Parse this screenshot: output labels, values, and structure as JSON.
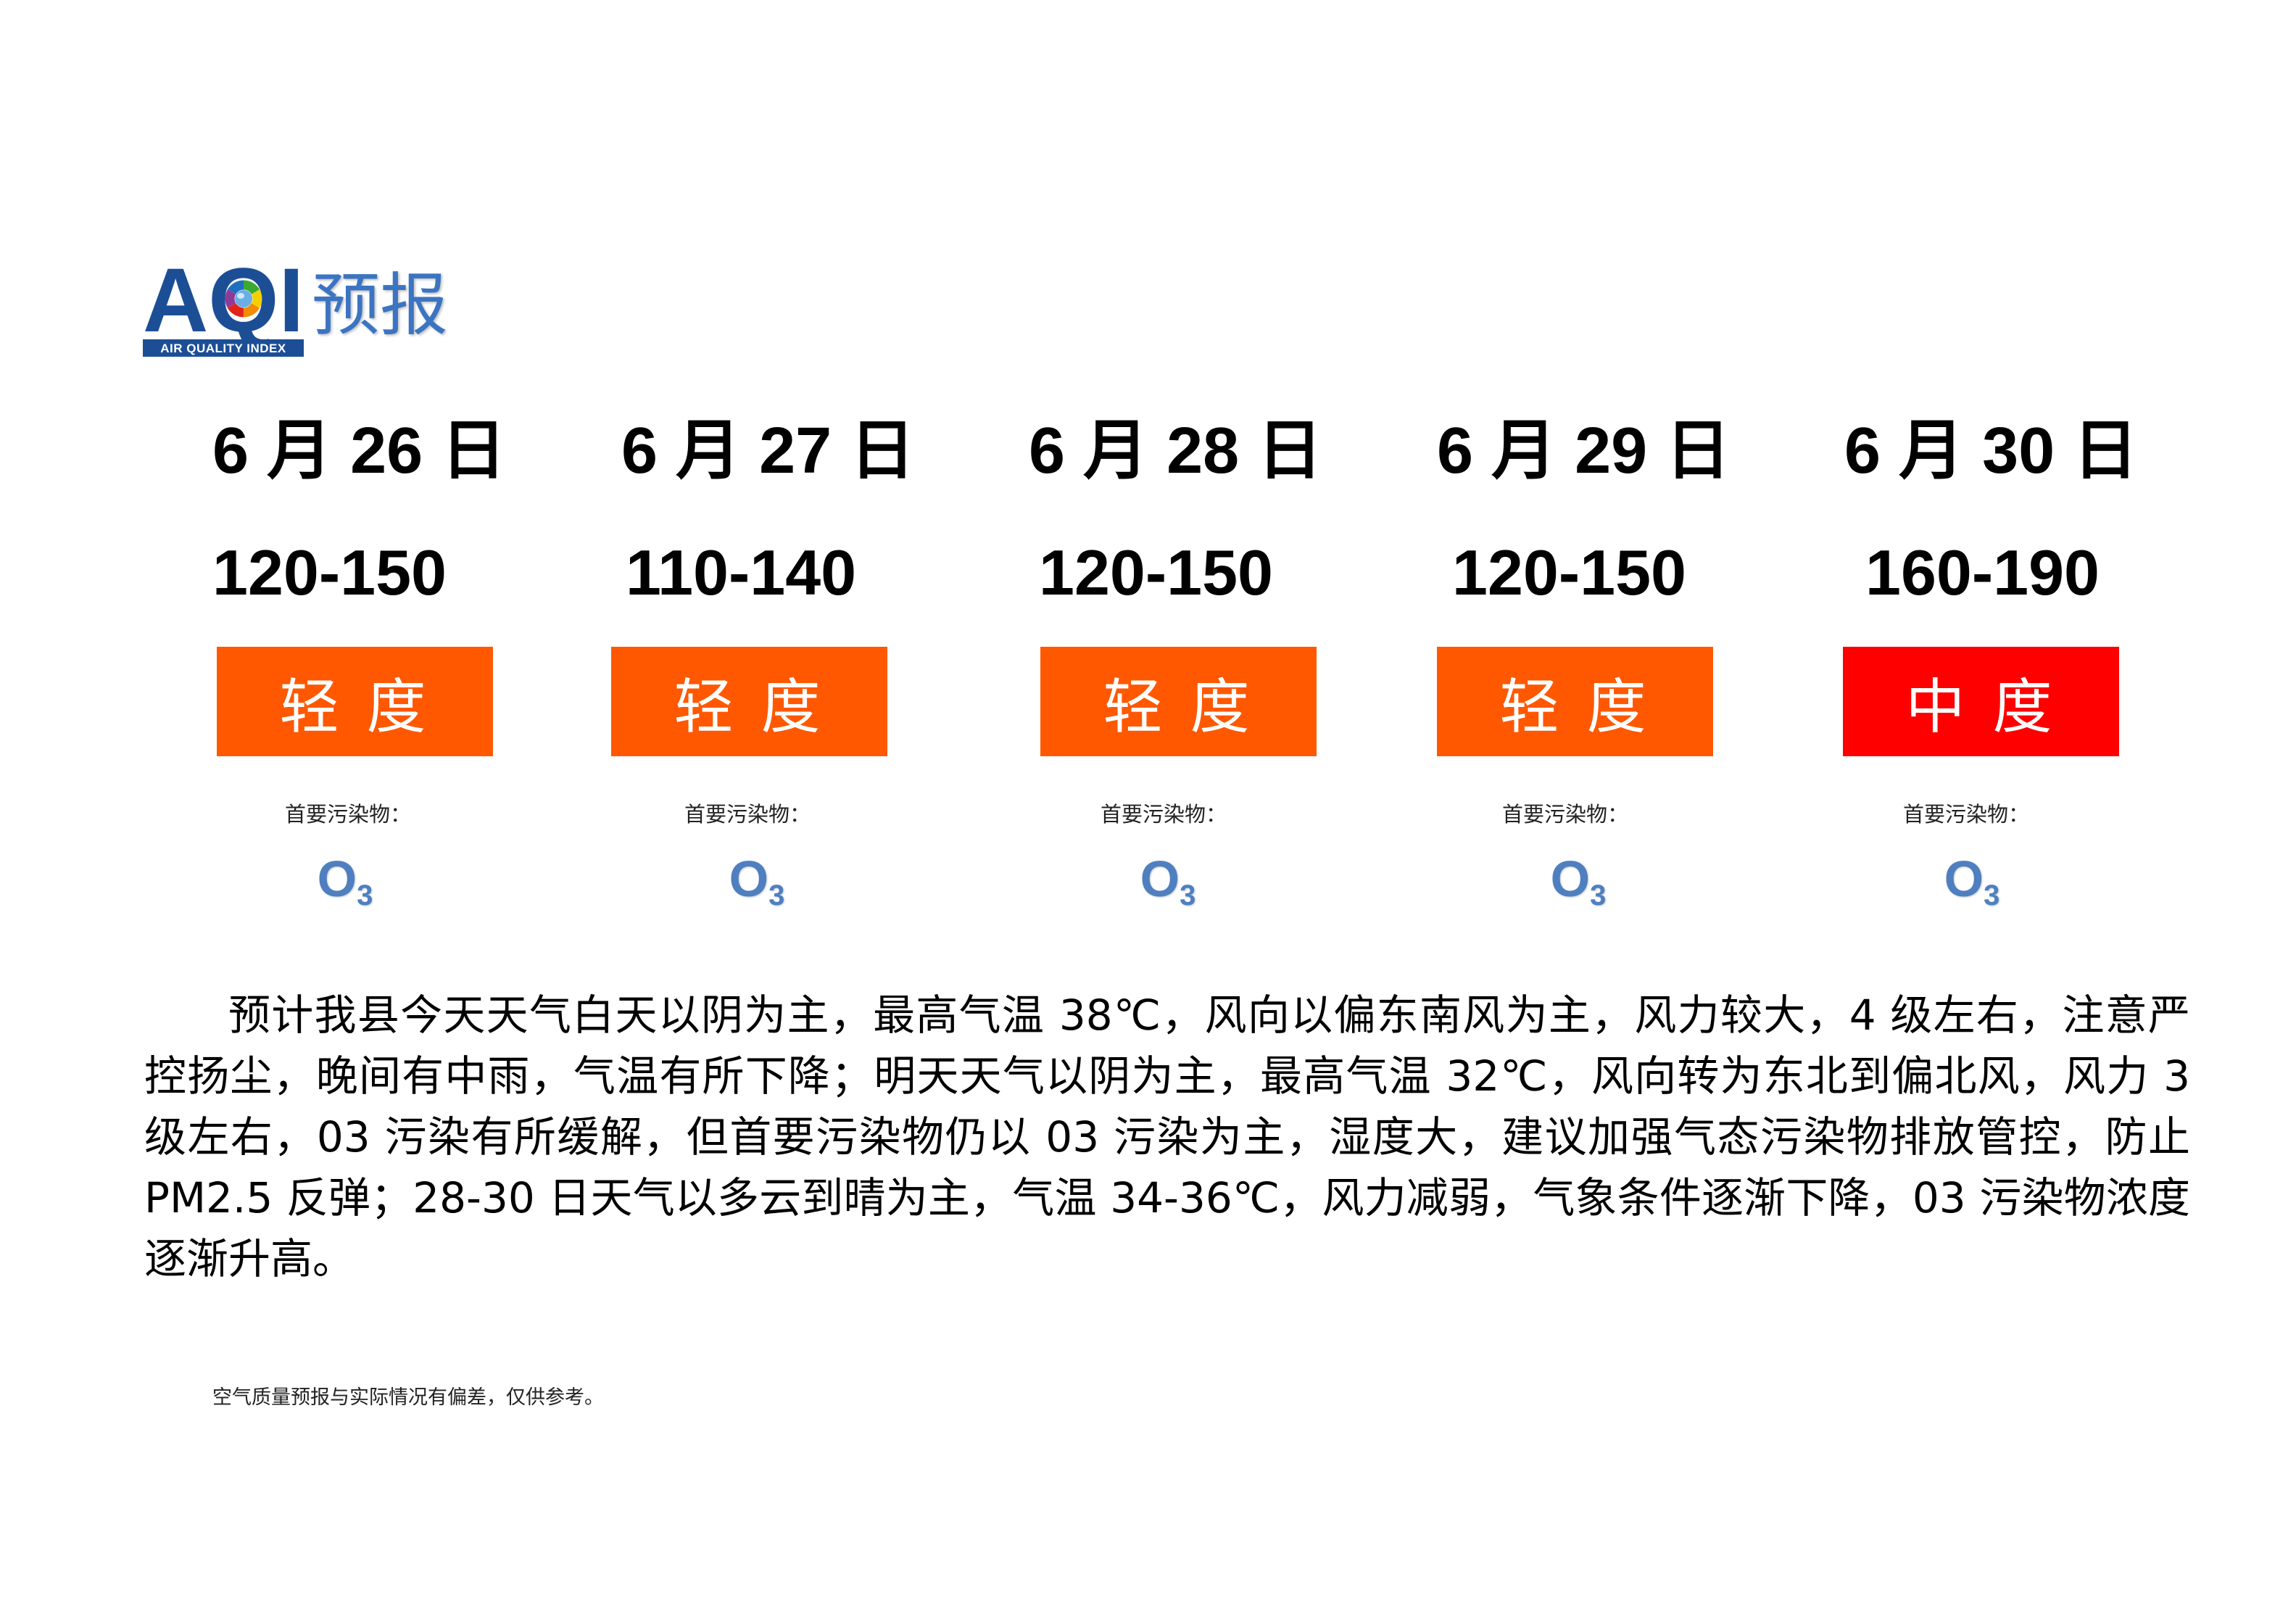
{
  "logo": {
    "text": "AQI",
    "tagline": "AIR QUALITY INDEX",
    "title": "预报"
  },
  "days": [
    {
      "date": "6 月 26 日",
      "aqi_range": "120-150",
      "level": "轻 度",
      "level_color": "#FF5800",
      "pollutant_label": "首要污染物：",
      "pollutant": {
        "symbol": "O",
        "subscript": "3"
      }
    },
    {
      "date": "6 月 27 日",
      "aqi_range": "110-140",
      "level": "轻 度",
      "level_color": "#FF5800",
      "pollutant_label": "首要污染物：",
      "pollutant": {
        "symbol": "O",
        "subscript": "3"
      }
    },
    {
      "date": "6 月 28 日",
      "aqi_range": "120-150",
      "level": "轻 度",
      "level_color": "#FF5800",
      "pollutant_label": "首要污染物：",
      "pollutant": {
        "symbol": "O",
        "subscript": "3"
      }
    },
    {
      "date": "6 月 29 日",
      "aqi_range": "120-150",
      "level": "轻 度",
      "level_color": "#FF5800",
      "pollutant_label": "首要污染物：",
      "pollutant": {
        "symbol": "O",
        "subscript": "3"
      }
    },
    {
      "date": "6 月 30 日",
      "aqi_range": "160-190",
      "level": "中 度",
      "level_color": "#FF0000",
      "pollutant_label": "首要污染物：",
      "pollutant": {
        "symbol": "O",
        "subscript": "3"
      }
    }
  ],
  "forecast_text": "预计我县今天天气白天以阴为主，最高气温 38℃，风向以偏东南风为主，风力较大，4 级左右，注意严控扬尘，晚间有中雨，气温有所下降；明天天气以阴为主，最高气温 32℃，风向转为东北到偏北风，风力 3 级左右，03 污染有所缓解，但首要污染物仍以 03 污染为主，湿度大，建议加强气态污染物排放管控，防止PM2.5 反弹；28-30 日天气以多云到晴为主，气温 34-36℃，风力减弱，气象条件逐渐下降，03 污染物浓度逐渐升高。",
  "disclaimer": "空气质量预报与实际情况有偏差，仅供参考。"
}
